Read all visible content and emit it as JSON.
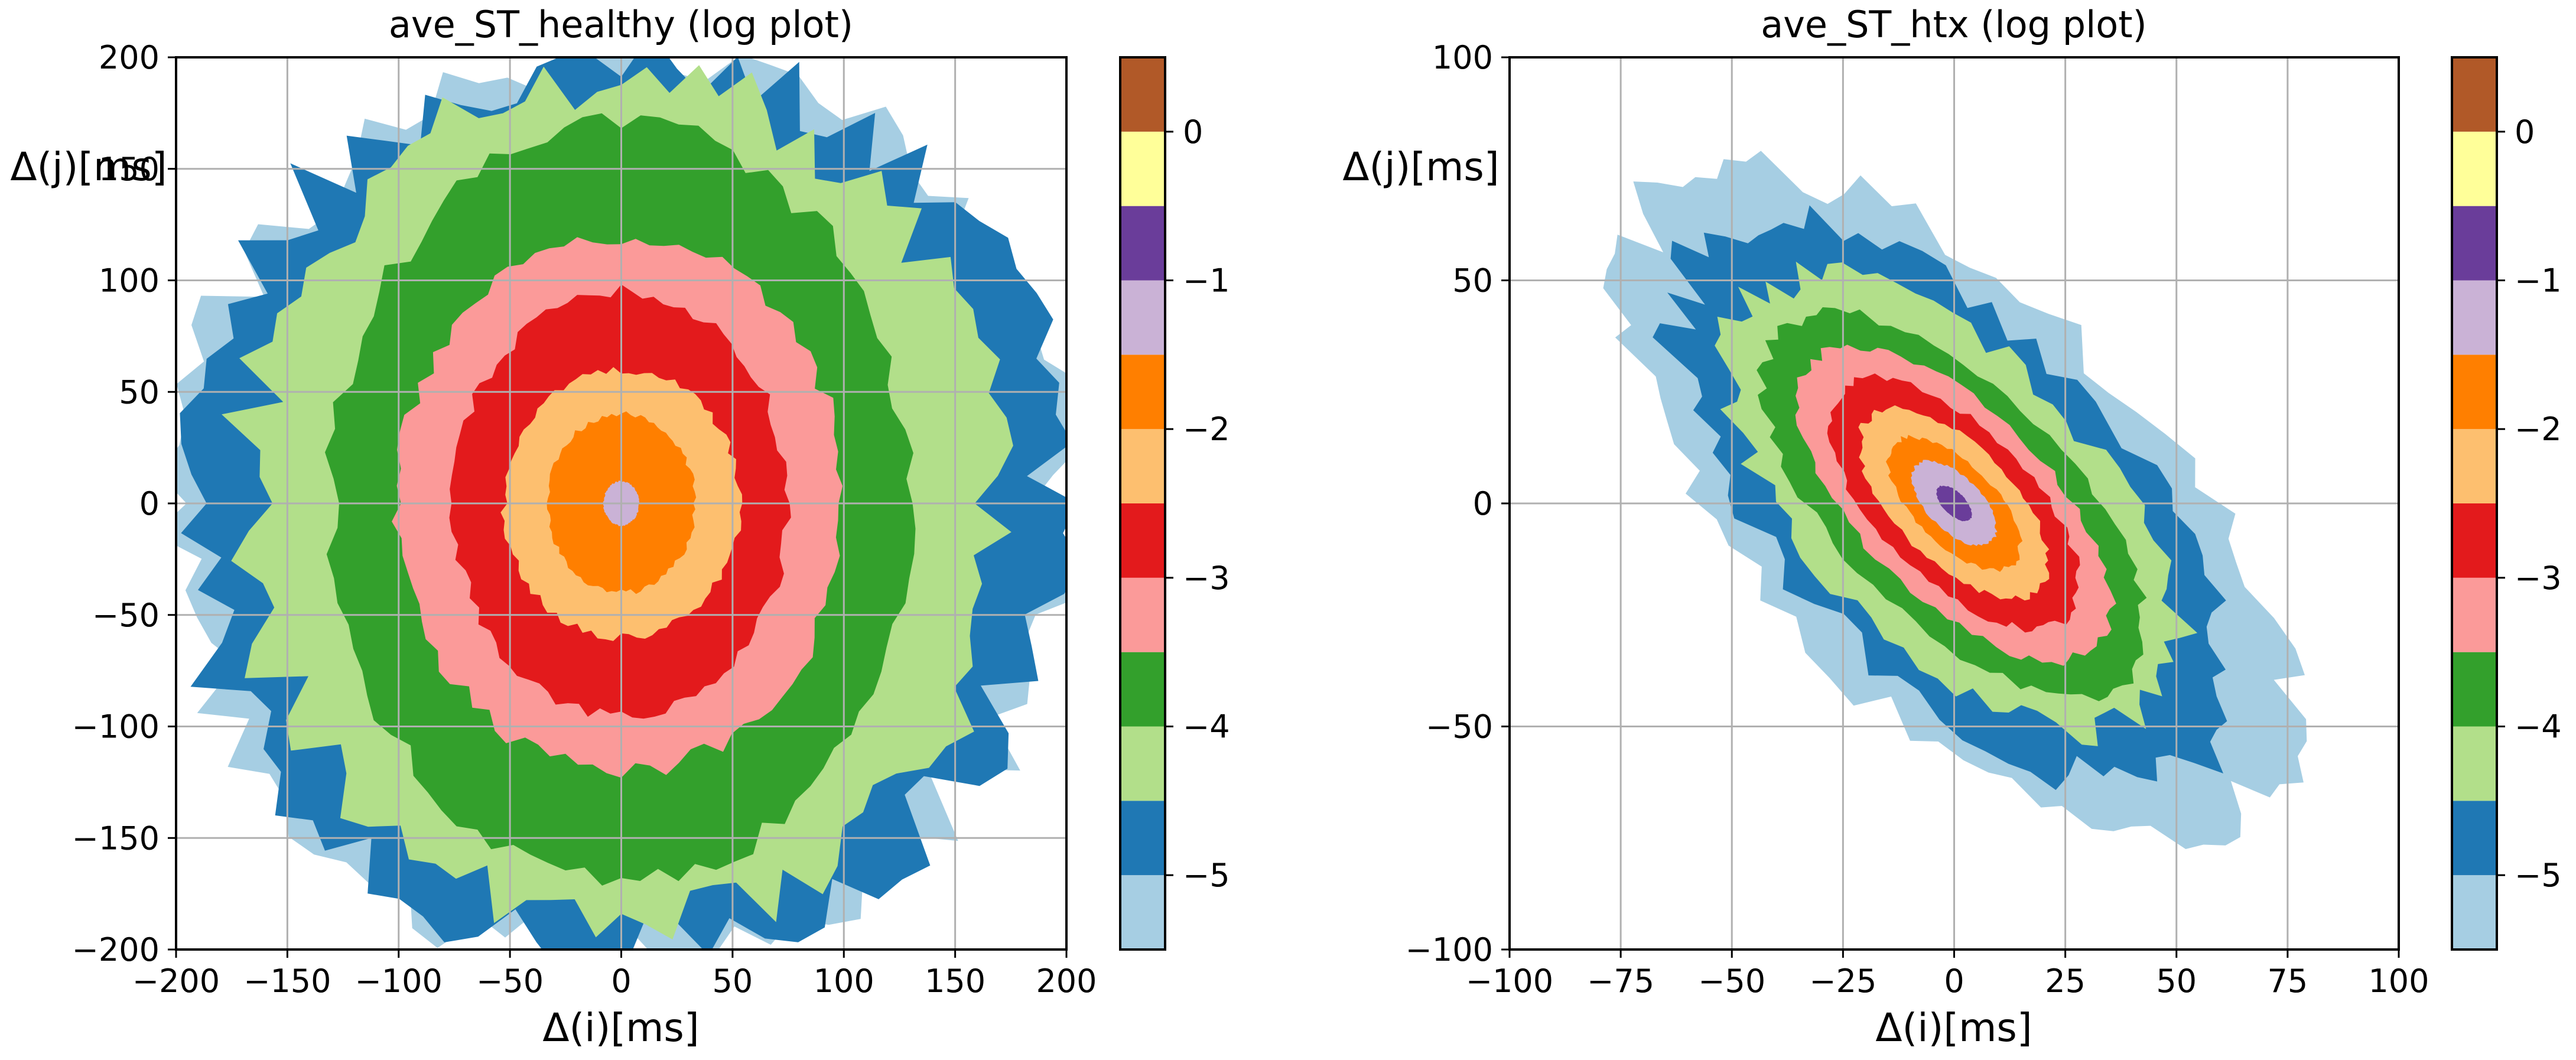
{
  "chart_data": [
    {
      "type": "contour",
      "title": "ave_ST_healthy  (log plot)",
      "xlabel": "Δ(i)[ms]",
      "ylabel": "Δ(j)[ms]",
      "xlim": [
        -200,
        200
      ],
      "ylim": [
        -200,
        200
      ],
      "xticks": [
        -200,
        -150,
        -100,
        -50,
        0,
        50,
        100,
        150,
        200
      ],
      "yticks": [
        -200,
        -150,
        -100,
        -50,
        0,
        50,
        100,
        150,
        200
      ],
      "xtick_labels": [
        "−200",
        "−150",
        "−100",
        "−50",
        "0",
        "50",
        "100",
        "150",
        "200"
      ],
      "ytick_labels": [
        "−200",
        "−150",
        "−100",
        "−50",
        "0",
        "50",
        "100",
        "150",
        "200"
      ],
      "grid": true,
      "approx_contour_half_widths_x": {
        "-5.5": 200,
        "-5": 195,
        "-4.5": 170,
        "-4": 130,
        "-3.5": 100,
        "-3": 75,
        "-2.5": 53,
        "-2": 33,
        "-1.5": 8
      },
      "approx_contour_half_heights_y": {
        "-5.5": 200,
        "-5": 200,
        "-4.5": 190,
        "-4": 170,
        "-3.5": 120,
        "-3": 95,
        "-2.5": 60,
        "-2": 40,
        "-1.5": 10
      },
      "center": [
        0,
        0
      ],
      "tilt_deg": 0
    },
    {
      "type": "contour",
      "title": "ave_ST_htx (log plot)",
      "xlabel": "Δ(i)[ms]",
      "ylabel": "Δ(j)[ms]",
      "xlim": [
        -100,
        100
      ],
      "ylim": [
        -100,
        100
      ],
      "xticks": [
        -100,
        -75,
        -50,
        -25,
        0,
        25,
        50,
        75,
        100
      ],
      "yticks": [
        -100,
        -50,
        0,
        50,
        100
      ],
      "xtick_labels": [
        "−100",
        "−75",
        "−50",
        "−25",
        "0",
        "25",
        "50",
        "75",
        "100"
      ],
      "ytick_labels": [
        "−100",
        "−50",
        "0",
        "50",
        "100"
      ],
      "grid": true,
      "approx_contour_axes": {
        "-5.5": [
          95,
          45
        ],
        "-5": [
          80,
          38
        ],
        "-4.5": [
          64,
          32
        ],
        "-4": [
          55,
          26
        ],
        "-3.5": [
          45,
          21
        ],
        "-3": [
          36,
          17
        ],
        "-2.5": [
          27,
          13
        ],
        "-2": [
          19,
          9
        ],
        "-1.5": [
          12,
          6
        ],
        "-1": [
          5,
          2.5
        ]
      },
      "center": [
        0,
        0
      ],
      "tilt_deg": -45
    }
  ],
  "colorbar": {
    "levels": [
      -5.5,
      -5.0,
      -4.5,
      -4.0,
      -3.5,
      -3.0,
      -2.5,
      -2.0,
      -1.5,
      -1.0,
      -0.5,
      0.0,
      0.5
    ],
    "colors": [
      "#a6cee3",
      "#1f78b4",
      "#b2df8a",
      "#33a02c",
      "#fb9a99",
      "#e31a1c",
      "#fdbf6f",
      "#ff7f00",
      "#cab2d6",
      "#6a3d9a",
      "#ffff99",
      "#b15928"
    ],
    "ticks": [
      -5,
      -4,
      -3,
      -2,
      -1,
      0
    ],
    "tick_labels": [
      "−5",
      "−4",
      "−3",
      "−2",
      "−1",
      "0"
    ]
  }
}
